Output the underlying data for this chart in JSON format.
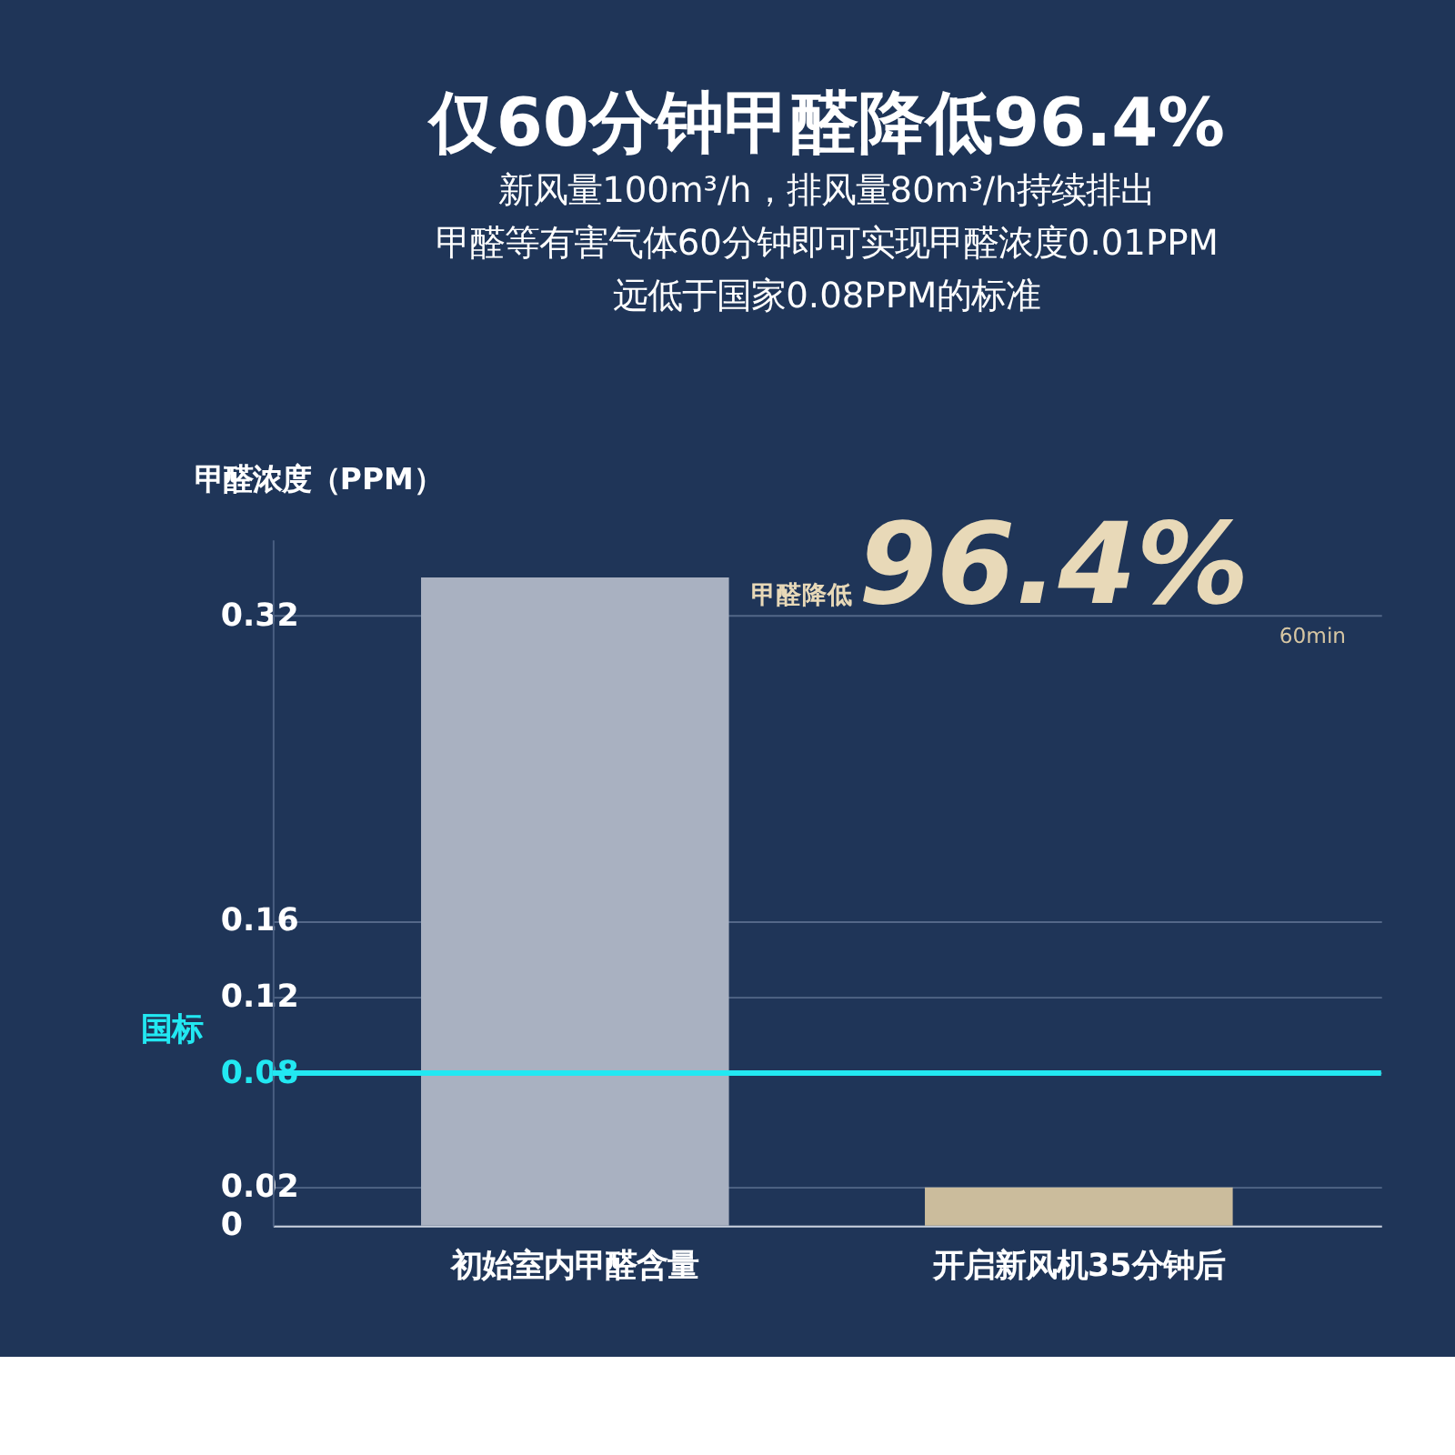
{
  "chart_data": {
    "type": "bar",
    "title": "仅60分钟甲醛降低96.4%",
    "subtitle": [
      "新风量100m³/h，排风量80m³/h持续排出",
      "甲醛等有害气体60分钟即可实现甲醛浓度0.01PPM",
      "远低于国家0.08PPM的标准"
    ],
    "ylabel": "甲醛浓度（PPM）",
    "categories": [
      "初始室内甲醛含量",
      "开启新风机35分钟后"
    ],
    "values": [
      0.34,
      0.02
    ],
    "colors": [
      "#a9b1c1",
      "#cbbc9c"
    ],
    "ylim": [
      0,
      0.36
    ],
    "yticks": [
      0,
      0.02,
      0.08,
      0.12,
      0.16,
      0.32
    ],
    "grid": "y",
    "ref_lines": [
      {
        "axis": "y",
        "value": 0.08,
        "label": "国标",
        "color": "#22e8f2"
      }
    ],
    "annotations": [
      "甲醛降低",
      "96.4%",
      "60min"
    ]
  }
}
